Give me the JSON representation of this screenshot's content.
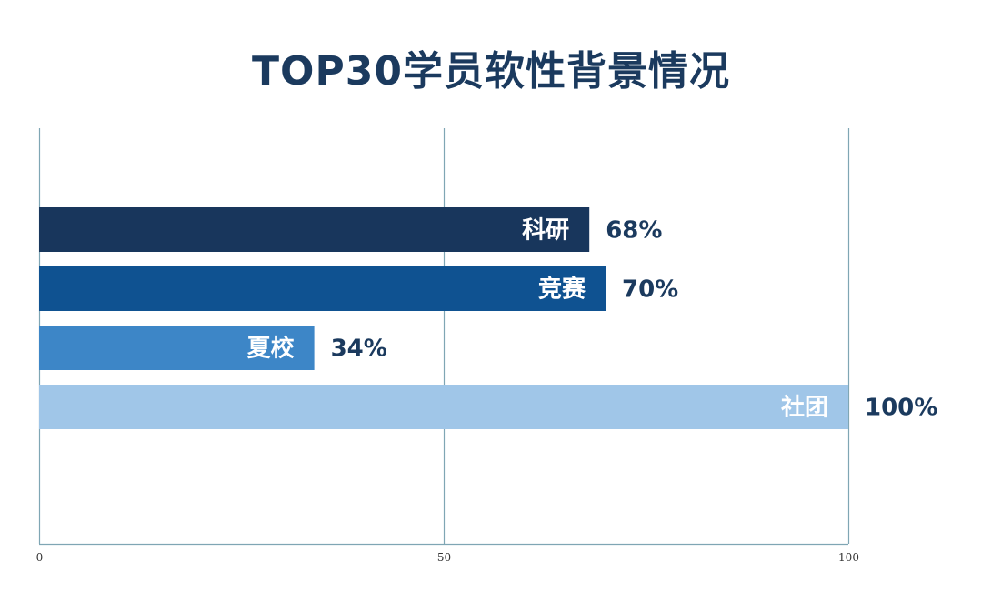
{
  "chart_data": {
    "type": "bar",
    "orientation": "horizontal",
    "title": "TOP30学员软性背景情况",
    "categories": [
      "科研",
      "竞赛",
      "夏校",
      "社团"
    ],
    "values": [
      68,
      70,
      34,
      100
    ],
    "value_labels": [
      "68%",
      "70%",
      "34%",
      "100%"
    ],
    "colors": [
      "#18365c",
      "#0f5291",
      "#3d86c7",
      "#a0c6e8"
    ],
    "xlim": [
      0,
      100
    ],
    "xticks": [
      0,
      50,
      100
    ],
    "grid": true,
    "gridline_color": "#7fa6b4",
    "xlabel": "",
    "ylabel": ""
  }
}
